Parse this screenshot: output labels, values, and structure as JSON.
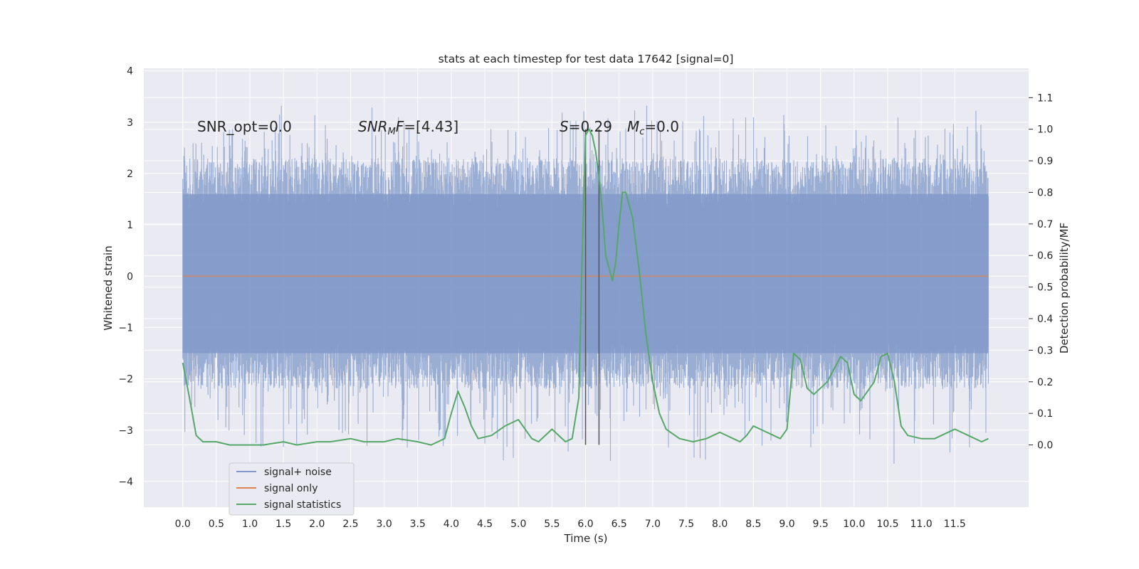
{
  "chart_data": {
    "type": "line",
    "title": "stats at each timestep for test data 17642 [signal=0]",
    "xlabel": "Time (s)",
    "ylabel_left": "Whitened strain",
    "ylabel_right": "Detection probability/MF",
    "xlim": [
      -0.58,
      12.6
    ],
    "ylim_left": [
      -4.5,
      4.05
    ],
    "ylim_right": [
      -0.197,
      1.193
    ],
    "x_ticks": [
      0.0,
      0.5,
      1.0,
      1.5,
      2.0,
      2.5,
      3.0,
      3.5,
      4.0,
      4.5,
      5.0,
      5.5,
      6.0,
      6.5,
      7.0,
      7.5,
      8.0,
      8.5,
      9.0,
      9.5,
      10.0,
      10.5,
      11.0,
      11.5
    ],
    "x_tick_labels": [
      "0.0",
      "0.5",
      "1.0",
      "1.5",
      "2.0",
      "2.5",
      "3.0",
      "3.5",
      "4.0",
      "4.5",
      "5.0",
      "5.5",
      "6.0",
      "6.5",
      "7.0",
      "7.5",
      "8.0",
      "8.5",
      "9.0",
      "9.5",
      "10.0",
      "10.5",
      "11.0",
      "11.5"
    ],
    "y_left_ticks": [
      -4,
      -3,
      -2,
      -1,
      0,
      1,
      2,
      3,
      4
    ],
    "y_left_tick_labels": [
      "−4",
      "−3",
      "−2",
      "−1",
      "0",
      "1",
      "2",
      "3",
      "4"
    ],
    "y_right_ticks": [
      0.0,
      0.1,
      0.2,
      0.3,
      0.4,
      0.5,
      0.6,
      0.7,
      0.8,
      0.9,
      1.0,
      1.1
    ],
    "y_right_tick_labels": [
      "0.0",
      "0.1",
      "0.2",
      "0.3",
      "0.4",
      "0.5",
      "0.6",
      "0.7",
      "0.8",
      "0.9",
      "1.0",
      "1.1"
    ],
    "grid": true,
    "legend_position": "lower-left",
    "series": [
      {
        "name": "signal+ noise",
        "axis": "left",
        "color": "#7f98c8",
        "style": "dense noise band",
        "x_range": [
          0.0,
          12.0
        ],
        "core_band": [
          -1.5,
          1.6
        ],
        "envelope_max": 3.7,
        "envelope_min": -4.1
      },
      {
        "name": "signal only",
        "axis": "left",
        "color": "#dd8452",
        "x": [
          0.0,
          12.0
        ],
        "values": [
          0.0,
          0.0
        ]
      },
      {
        "name": "signal statistics",
        "axis": "right",
        "color": "#55a868",
        "x": [
          0.0,
          0.1,
          0.2,
          0.3,
          0.5,
          0.7,
          1.0,
          1.2,
          1.5,
          1.7,
          2.0,
          2.2,
          2.5,
          2.7,
          3.0,
          3.2,
          3.5,
          3.7,
          3.9,
          4.0,
          4.1,
          4.2,
          4.3,
          4.4,
          4.6,
          4.8,
          5.0,
          5.1,
          5.2,
          5.3,
          5.5,
          5.7,
          5.8,
          5.9,
          5.95,
          6.0,
          6.05,
          6.1,
          6.15,
          6.2,
          6.25,
          6.3,
          6.4,
          6.45,
          6.5,
          6.55,
          6.6,
          6.7,
          6.8,
          6.9,
          7.0,
          7.1,
          7.2,
          7.4,
          7.6,
          7.8,
          8.0,
          8.2,
          8.3,
          8.4,
          8.5,
          8.6,
          8.8,
          8.9,
          9.0,
          9.1,
          9.2,
          9.3,
          9.4,
          9.6,
          9.8,
          9.9,
          10.0,
          10.1,
          10.3,
          10.4,
          10.5,
          10.6,
          10.7,
          10.8,
          11.0,
          11.2,
          11.4,
          11.5,
          11.7,
          11.9,
          12.0
        ],
        "values": [
          0.26,
          0.15,
          0.03,
          0.01,
          0.01,
          0.0,
          0.0,
          0.0,
          0.01,
          0.0,
          0.01,
          0.01,
          0.02,
          0.01,
          0.01,
          0.02,
          0.01,
          0.0,
          0.02,
          0.1,
          0.17,
          0.12,
          0.06,
          0.02,
          0.03,
          0.06,
          0.08,
          0.05,
          0.02,
          0.01,
          0.05,
          0.01,
          0.02,
          0.15,
          0.6,
          0.98,
          1.0,
          0.98,
          0.93,
          0.85,
          0.74,
          0.6,
          0.52,
          0.58,
          0.7,
          0.8,
          0.8,
          0.72,
          0.55,
          0.35,
          0.2,
          0.1,
          0.05,
          0.02,
          0.01,
          0.02,
          0.04,
          0.02,
          0.01,
          0.03,
          0.06,
          0.05,
          0.03,
          0.02,
          0.05,
          0.29,
          0.27,
          0.18,
          0.16,
          0.2,
          0.28,
          0.26,
          0.16,
          0.14,
          0.2,
          0.28,
          0.29,
          0.2,
          0.06,
          0.03,
          0.02,
          0.02,
          0.04,
          0.05,
          0.03,
          0.01,
          0.02
        ]
      }
    ],
    "vertical_lines": {
      "axis": "right",
      "x": [
        6.0,
        6.2
      ],
      "y_range": [
        0.0,
        1.0
      ]
    },
    "annotations": [
      {
        "text": "SNR_opt=0.0",
        "x": 0.2,
        "y": 2.85
      },
      {
        "text": "SNR_MF=[4.43]",
        "x": 2.6,
        "y": 2.85
      },
      {
        "text": "S=0.29",
        "x": 5.6,
        "y": 2.85
      },
      {
        "text": "M_c=0.0",
        "x": 6.6,
        "y": 2.85
      }
    ]
  },
  "annotations_display": {
    "snr_opt": {
      "label": "SNR_opt",
      "value": "=0.0"
    },
    "snr_mf": {
      "main": "SNR",
      "sub": "M",
      "rest": "F",
      "value": "=[4.43]"
    },
    "s": {
      "label": "S",
      "value": "=0.29"
    },
    "mc": {
      "main": "M",
      "sub": "c",
      "value": "=0.0"
    }
  },
  "legend": {
    "items": [
      {
        "label": "signal+ noise",
        "color": "#7f98c8"
      },
      {
        "label": "signal only",
        "color": "#dd8452"
      },
      {
        "label": "signal statistics",
        "color": "#55a868"
      }
    ]
  },
  "colors": {
    "axes_bg": "#eaeaf2",
    "grid": "#ffffff",
    "noise": "#7f98c8",
    "signal": "#dd8452",
    "stat": "#55a868",
    "vline": "#555555"
  }
}
